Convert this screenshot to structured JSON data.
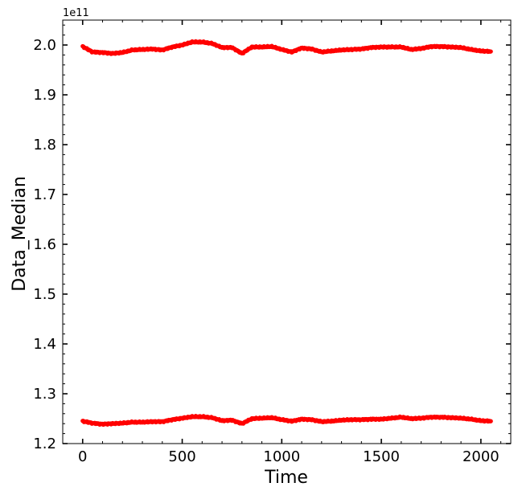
{
  "chart_data": {
    "type": "scatter",
    "title": "",
    "xlabel": "Time",
    "ylabel": "Data_Median",
    "y_offset_text": "1e11",
    "xlim": [
      -100,
      2150
    ],
    "ylim": [
      1.2,
      2.05
    ],
    "xticks": [
      0,
      500,
      1000,
      1500,
      2000
    ],
    "xtick_labels": [
      "0",
      "500",
      "1000",
      "1500",
      "2000"
    ],
    "yticks": [
      1.2,
      1.3,
      1.4,
      1.5,
      1.6,
      1.7,
      1.8,
      1.9,
      2.0
    ],
    "ytick_labels": [
      "1.2",
      "1.3",
      "1.4",
      "1.5",
      "1.6",
      "1.7",
      "1.8",
      "1.9",
      "2.0"
    ],
    "grid": false,
    "legend": "none",
    "marker_color": "#ff0000",
    "series": [
      {
        "x": [
          0,
          50,
          100,
          150,
          200,
          250,
          300,
          350,
          400,
          450,
          500,
          550,
          600,
          650,
          700,
          750,
          800,
          850,
          900,
          950,
          1000,
          1050,
          1100,
          1150,
          1200,
          1250,
          1300,
          1350,
          1400,
          1450,
          1500,
          1550,
          1600,
          1650,
          1700,
          1750,
          1800,
          1850,
          1900,
          1950,
          2000,
          2050
        ],
        "values": [
          1.997,
          1.986,
          1.985,
          1.983,
          1.985,
          1.99,
          1.991,
          1.992,
          1.99,
          1.996,
          2.0,
          2.006,
          2.006,
          2.003,
          1.995,
          1.995,
          1.983,
          1.996,
          1.996,
          1.997,
          1.991,
          1.986,
          1.994,
          1.992,
          1.986,
          1.988,
          1.99,
          1.991,
          1.992,
          1.995,
          1.996,
          1.996,
          1.996,
          1.991,
          1.993,
          1.997,
          1.997,
          1.996,
          1.995,
          1.991,
          1.988,
          1.987
        ]
      },
      {
        "x": [
          0,
          50,
          100,
          150,
          200,
          250,
          300,
          350,
          400,
          450,
          500,
          550,
          600,
          650,
          700,
          750,
          800,
          850,
          900,
          950,
          1000,
          1050,
          1100,
          1150,
          1200,
          1250,
          1300,
          1350,
          1400,
          1450,
          1500,
          1550,
          1600,
          1650,
          1700,
          1750,
          1800,
          1850,
          1900,
          1950,
          2000,
          2050
        ],
        "values": [
          1.245,
          1.241,
          1.239,
          1.24,
          1.241,
          1.243,
          1.243,
          1.244,
          1.244,
          1.248,
          1.251,
          1.254,
          1.254,
          1.252,
          1.246,
          1.247,
          1.24,
          1.25,
          1.251,
          1.252,
          1.248,
          1.245,
          1.249,
          1.248,
          1.244,
          1.245,
          1.247,
          1.248,
          1.248,
          1.249,
          1.249,
          1.251,
          1.253,
          1.25,
          1.251,
          1.253,
          1.253,
          1.252,
          1.251,
          1.249,
          1.246,
          1.245
        ]
      }
    ]
  }
}
